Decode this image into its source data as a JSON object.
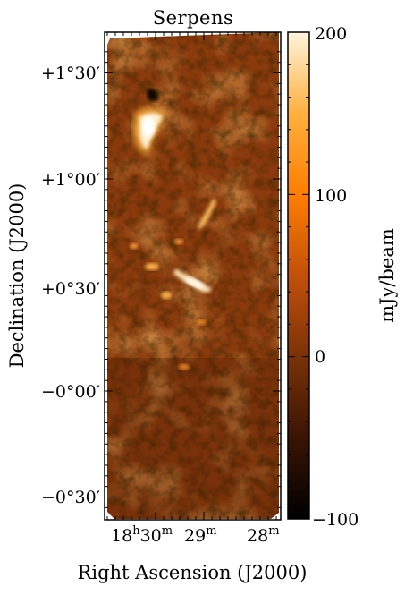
{
  "chart_data": {
    "type": "heatmap",
    "title": "Serpens",
    "xlabel": "Right Ascension (J2000)",
    "ylabel": "Declination (J2000)",
    "x_ticks": [
      {
        "label_main": "18",
        "sup1": "h",
        "mid": "30",
        "sup2": "m"
      },
      {
        "label_main": "29",
        "sup1": "m"
      },
      {
        "label_main": "28",
        "sup1": "m"
      }
    ],
    "y_ticks": [
      {
        "label": "+1°30′",
        "value_deg": 1.5
      },
      {
        "label": "+1°00′",
        "value_deg": 1.0
      },
      {
        "label": "+0°30′",
        "value_deg": 0.5
      },
      {
        "label": "−0°00′",
        "value_deg": 0.0
      },
      {
        "label": "−0°30′",
        "value_deg": -0.5
      }
    ],
    "colorbar": {
      "label": "mJy/beam",
      "range": [
        -100,
        200
      ],
      "ticks": [
        {
          "label": "200",
          "value": 200
        },
        {
          "label": "100",
          "value": 100
        },
        {
          "label": "0",
          "value": 0
        },
        {
          "label": "−100",
          "value": -100
        }
      ],
      "colors": [
        "#000000",
        "#3a1404",
        "#7a3208",
        "#c2500a",
        "#ff7e00",
        "#ffb040",
        "#fff4dc"
      ]
    },
    "grid": false,
    "legend": "none",
    "features": [
      {
        "name": "bright-core",
        "level": 200
      },
      {
        "name": "filament",
        "level": 120
      },
      {
        "name": "clump",
        "level": 110
      }
    ]
  }
}
